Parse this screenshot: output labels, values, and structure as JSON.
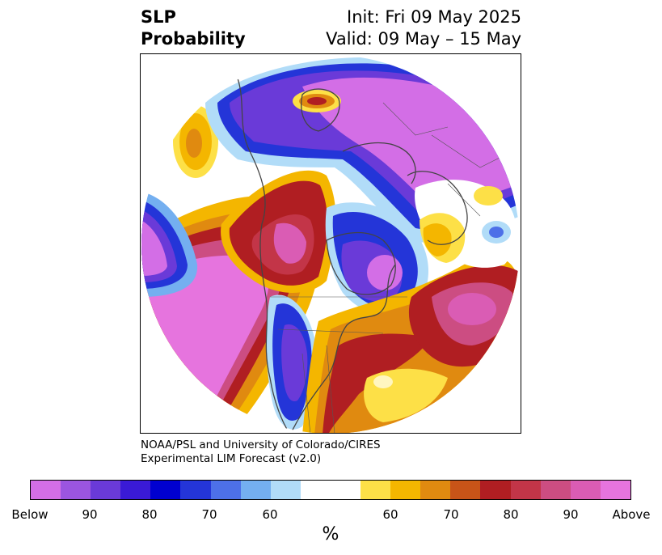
{
  "title": {
    "left_line1": "SLP",
    "left_line2": "Probability",
    "right_line1": "Init: Fri 09 May 2025",
    "right_line2": "Valid: 09 May – 15 May"
  },
  "credit": {
    "line1": "NOAA/PSL and University of Colorado/CIRES",
    "line2": "Experimental LIM Forecast (v2.0)"
  },
  "colorbar": {
    "colors": [
      "#d36ee6",
      "#9b55e0",
      "#6a3ad8",
      "#3a1ad6",
      "#0000d0",
      "#2435d8",
      "#4d70e8",
      "#74aff0",
      "#b1dcf8",
      "#ffffff",
      "#ffffff",
      "#fde047",
      "#f4b600",
      "#e08a10",
      "#c85418",
      "#b01e22",
      "#c33548",
      "#cc4d82",
      "#da5cb4",
      "#e674de"
    ],
    "labels": [
      "Below",
      "90",
      "80",
      "70",
      "60",
      "60",
      "70",
      "80",
      "90",
      "Above"
    ],
    "unit": "%"
  },
  "map": {
    "projection": "north-polar-stereographic",
    "variable": "SLP",
    "coastline_color": "#444444"
  }
}
